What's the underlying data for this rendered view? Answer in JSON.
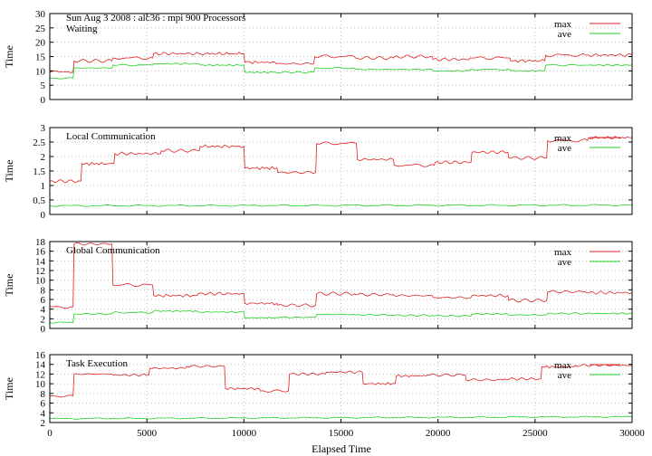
{
  "figure": {
    "header": "Sun Aug 3 2008 : alc36 : mpi 900 Processors",
    "xlabel": "Elapsed Time",
    "xlim": [
      0,
      30000
    ],
    "xticks": [
      0,
      5000,
      10000,
      15000,
      20000,
      25000,
      30000
    ],
    "ylabel": "Time"
  },
  "colors": {
    "max": "#e02020",
    "ave": "#20d020"
  },
  "chart_data": [
    {
      "type": "line",
      "title": "Waiting",
      "ylim": [
        0,
        30
      ],
      "yticks": [
        0,
        5,
        10,
        15,
        20,
        25,
        30
      ],
      "grid": true,
      "legend": "top-right",
      "series": [
        {
          "name": "max",
          "color": "#e02020",
          "x": [
            0,
            1200,
            1250,
            3200,
            3250,
            5300,
            5350,
            7700,
            7750,
            10000,
            10050,
            11600,
            11650,
            13600,
            13650,
            15700,
            15750,
            17700,
            17750,
            19700,
            19750,
            21600,
            21650,
            23700,
            23750,
            25500,
            25550,
            27600,
            27650,
            30000
          ],
          "y": [
            9.5,
            9.5,
            13.5,
            13.5,
            14.5,
            14.5,
            16,
            16,
            16,
            16,
            13,
            13,
            12.5,
            12.5,
            15,
            15,
            14.5,
            14.5,
            15,
            15,
            14,
            14,
            14.5,
            14.5,
            13.5,
            13.5,
            15.5,
            15.5,
            15.5,
            15.5
          ]
        },
        {
          "name": "ave",
          "color": "#20d020",
          "x": [
            0,
            1200,
            1250,
            3200,
            3250,
            5300,
            5350,
            7700,
            7750,
            10000,
            10050,
            11600,
            11650,
            13600,
            13650,
            15700,
            15750,
            17700,
            17750,
            19700,
            19750,
            21600,
            21650,
            23700,
            23750,
            25500,
            25550,
            27600,
            27650,
            30000
          ],
          "y": [
            7.5,
            7.5,
            11,
            11,
            12,
            12,
            12.5,
            12.5,
            12,
            12,
            9.5,
            9.5,
            9.5,
            9.5,
            11,
            11,
            10.5,
            10.5,
            10.5,
            10.5,
            10,
            10,
            10.5,
            10.5,
            10,
            10,
            12,
            12,
            12,
            12
          ]
        }
      ]
    },
    {
      "type": "line",
      "title": "Local Communication",
      "ylim": [
        0,
        3
      ],
      "yticks": [
        0,
        0.5,
        1,
        1.5,
        2,
        2.5,
        3
      ],
      "grid": true,
      "legend": "top-right",
      "series": [
        {
          "name": "max",
          "color": "#e02020",
          "x": [
            0,
            1600,
            1650,
            3300,
            3350,
            5700,
            5750,
            7700,
            7750,
            10000,
            10050,
            11700,
            11750,
            13700,
            13750,
            15800,
            15850,
            17700,
            17750,
            19800,
            19850,
            21700,
            21750,
            23600,
            23650,
            25600,
            25650,
            27700,
            27750,
            30000
          ],
          "y": [
            1.15,
            1.15,
            1.75,
            1.75,
            2.1,
            2.1,
            2.2,
            2.2,
            2.35,
            2.35,
            1.6,
            1.6,
            1.45,
            1.45,
            2.45,
            2.45,
            1.9,
            1.9,
            1.7,
            1.7,
            1.8,
            1.8,
            2.15,
            2.15,
            1.95,
            1.95,
            2.55,
            2.55,
            2.65,
            2.65
          ]
        },
        {
          "name": "ave",
          "color": "#20d020",
          "x": [
            0,
            30000
          ],
          "y": [
            0.3,
            0.32
          ]
        }
      ]
    },
    {
      "type": "line",
      "title": "Global Communication",
      "ylim": [
        0,
        18
      ],
      "yticks": [
        0,
        2,
        4,
        6,
        8,
        10,
        12,
        14,
        16,
        18
      ],
      "grid": true,
      "legend": "top-right",
      "series": [
        {
          "name": "max",
          "color": "#e02020",
          "x": [
            0,
            1200,
            1250,
            3200,
            3250,
            5300,
            5350,
            7600,
            7650,
            10000,
            10050,
            11700,
            11750,
            13700,
            13750,
            15700,
            15750,
            17700,
            17750,
            19700,
            19750,
            21700,
            21750,
            23600,
            23650,
            25600,
            25650,
            27600,
            27650,
            30000
          ],
          "y": [
            4.5,
            4.5,
            17.5,
            17.5,
            9,
            9,
            6.8,
            6.8,
            7.2,
            7.2,
            5.2,
            5.2,
            4.8,
            4.8,
            7.2,
            7.2,
            7,
            7,
            6.8,
            6.8,
            6.4,
            6.4,
            6.8,
            6.8,
            5.8,
            5.8,
            7.6,
            7.6,
            7.4,
            7.4
          ]
        },
        {
          "name": "ave",
          "color": "#20d020",
          "x": [
            0,
            1200,
            1250,
            3200,
            3250,
            5300,
            5350,
            7600,
            7650,
            10000,
            10050,
            11700,
            11750,
            13700,
            13750,
            15700,
            15750,
            17700,
            17750,
            19700,
            19750,
            21700,
            21750,
            23600,
            23650,
            25600,
            25650,
            27600,
            27650,
            30000
          ],
          "y": [
            1.2,
            1.2,
            3,
            3,
            3.3,
            3.3,
            3.6,
            3.6,
            3.4,
            3.4,
            2.2,
            2.2,
            2.3,
            2.3,
            2.9,
            2.9,
            2.8,
            2.8,
            2.7,
            2.7,
            2.6,
            2.6,
            3,
            3,
            2.8,
            2.8,
            3.1,
            3.1,
            3.1,
            3.1
          ]
        }
      ]
    },
    {
      "type": "line",
      "title": "Task Execution",
      "ylim": [
        2,
        16
      ],
      "yticks": [
        2,
        4,
        6,
        8,
        10,
        12,
        14,
        16
      ],
      "grid": true,
      "legend": "top-right",
      "series": [
        {
          "name": "max",
          "color": "#e02020",
          "x": [
            0,
            1200,
            1250,
            3200,
            3250,
            5100,
            5150,
            7000,
            7050,
            9000,
            9050,
            10800,
            10850,
            12300,
            12350,
            14200,
            14250,
            16100,
            16150,
            17800,
            17850,
            19400,
            19450,
            21400,
            21450,
            23400,
            23450,
            25300,
            25350,
            27000,
            27050,
            30000
          ],
          "y": [
            7.5,
            7.5,
            12,
            12,
            11.8,
            11.8,
            13.2,
            13.2,
            13.6,
            13.6,
            9,
            9,
            8.5,
            8.5,
            12,
            12,
            12.4,
            12.4,
            10,
            10,
            11.6,
            11.6,
            11.8,
            11.8,
            10.8,
            10.8,
            11,
            11,
            13.5,
            13.5,
            13.8,
            13.8
          ]
        },
        {
          "name": "ave",
          "color": "#20d020",
          "x": [
            0,
            30000
          ],
          "y": [
            2.8,
            3.2
          ]
        }
      ]
    }
  ]
}
